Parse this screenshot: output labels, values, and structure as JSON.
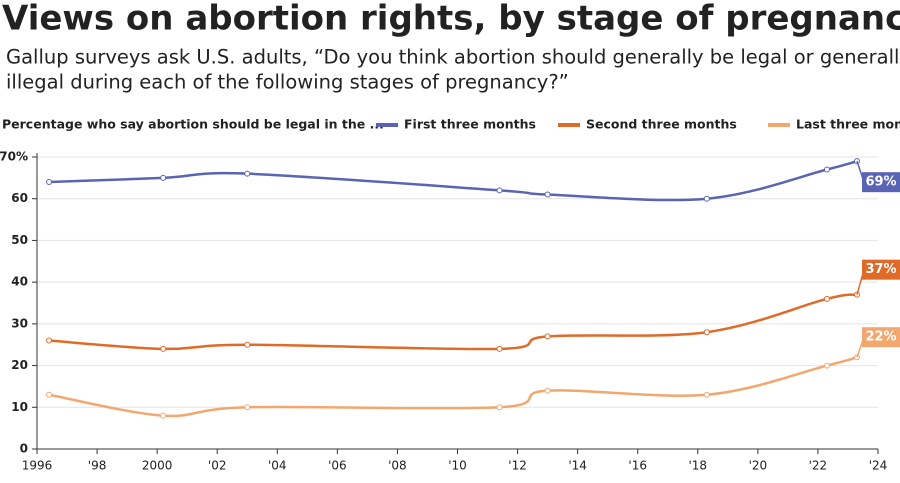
{
  "chart_data": {
    "type": "line",
    "title": "Views on abortion rights, by stage of pregnancy",
    "subtitle": [
      "Gallup surveys ask U.S. adults, “Do you think abortion should generally be legal or generally",
      "illegal during each of the following stages of pregnancy?”"
    ],
    "legend_title": "Percentage who say abortion should be legal in the ...",
    "x": [
      1996.4,
      2000.2,
      2003,
      2011.4,
      2013,
      2018.3,
      2022.3,
      2023.3
    ],
    "series": [
      {
        "name": "First three months",
        "color": "#5a64b4",
        "values": [
          64,
          65,
          66,
          62,
          61,
          60,
          67,
          69
        ],
        "value_labels": [
          null,
          null,
          null,
          null,
          null,
          null,
          null,
          "69%"
        ]
      },
      {
        "name": "Second three months",
        "color": "#e06a28",
        "values": [
          26,
          24,
          25,
          24,
          27,
          28,
          36,
          37
        ],
        "value_labels": [
          null,
          null,
          null,
          null,
          null,
          null,
          null,
          "37%"
        ]
      },
      {
        "name": "Last three months",
        "color": "#f2a76f",
        "values": [
          13,
          8,
          10,
          10,
          14,
          13,
          20,
          22
        ],
        "value_labels": [
          null,
          null,
          null,
          null,
          null,
          null,
          null,
          "22%"
        ]
      }
    ],
    "xlim": [
      1996,
      2024
    ],
    "xticks": [
      1996,
      {
        "value": 1998,
        "label": "'98"
      },
      2000,
      {
        "value": 2002,
        "label": "'02"
      },
      {
        "value": 2004,
        "label": "'04"
      },
      {
        "value": 2006,
        "label": "'06"
      },
      {
        "value": 2008,
        "label": "'08"
      },
      {
        "value": 2010,
        "label": "'10"
      },
      {
        "value": 2012,
        "label": "'12"
      },
      {
        "value": 2014,
        "label": "'14"
      },
      {
        "value": 2016,
        "label": "'16"
      },
      {
        "value": 2018,
        "label": "'18"
      },
      {
        "value": 2020,
        "label": "'20"
      },
      {
        "value": 2022,
        "label": "'22"
      },
      {
        "value": 2024,
        "label": "'24"
      }
    ],
    "ylim": [
      0,
      70
    ],
    "yticks": [
      0,
      10,
      20,
      30,
      40,
      50,
      60,
      {
        "value": 70,
        "label": "70%"
      }
    ],
    "grid": true
  }
}
